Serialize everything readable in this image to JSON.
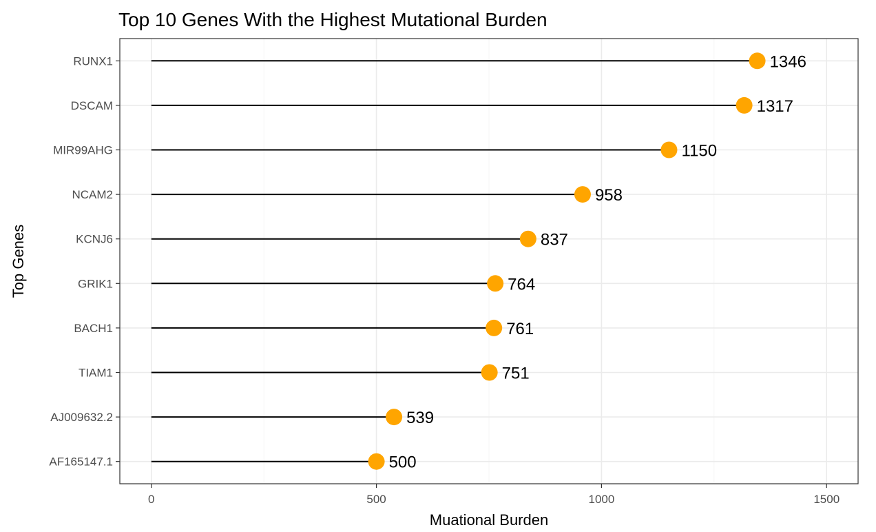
{
  "chart_data": {
    "type": "lollipop",
    "title": "Top 10 Genes With the Highest Mutational Burden",
    "xlabel": "Muational Burden",
    "ylabel": "Top Genes",
    "xlim": [
      -70,
      1570
    ],
    "x_ticks": [
      0,
      500,
      1000,
      1500
    ],
    "grid": true,
    "point_color": "#FFA500",
    "stem_color": "#000000",
    "categories": [
      "RUNX1",
      "DSCAM",
      "MIR99AHG",
      "NCAM2",
      "KCNJ6",
      "GRIK1",
      "BACH1",
      "TIAM1",
      "AJ009632.2",
      "AF165147.1"
    ],
    "values": [
      1346,
      1317,
      1150,
      958,
      837,
      764,
      761,
      751,
      539,
      500
    ],
    "data_labels": [
      "1346",
      "1317",
      "1150",
      "958",
      "837",
      "764",
      "761",
      "751",
      "539",
      "500"
    ]
  }
}
